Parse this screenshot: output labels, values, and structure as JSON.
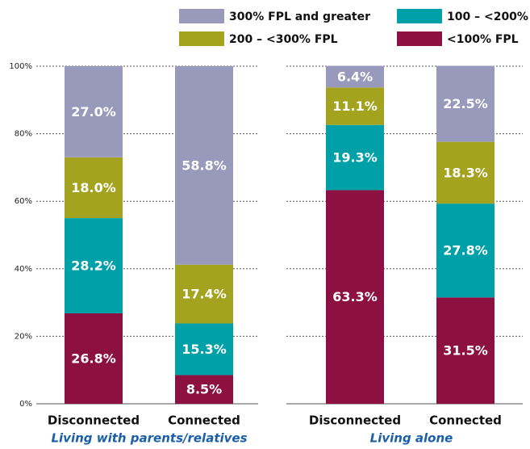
{
  "chart_data": {
    "type": "stacked_bar",
    "categories": [
      "Disconnected",
      "Connected",
      "Disconnected",
      "Connected"
    ],
    "group_labels": [
      "Living with parents/relatives",
      "Living alone"
    ],
    "series": [
      {
        "name": "<100% FPL",
        "color": "#8c1040",
        "values": [
          26.8,
          8.5,
          63.3,
          31.5
        ],
        "value_labels": [
          "26.8%",
          "8.5%",
          "63.3%",
          "31.5%"
        ]
      },
      {
        "name": "100 – <200% FPL",
        "color": "#00a0a8",
        "values": [
          28.2,
          15.3,
          19.3,
          27.8
        ],
        "value_labels": [
          "28.2%",
          "15.3%",
          "19.3%",
          "27.8%"
        ]
      },
      {
        "name": "200 – <300% FPL",
        "color": "#a3a31f",
        "values": [
          18.0,
          17.4,
          11.1,
          18.3
        ],
        "value_labels": [
          "18.0%",
          "17.4%",
          "11.1%",
          "18.3%"
        ]
      },
      {
        "name": "300% FPL and greater",
        "color": "#9999bb",
        "values": [
          27.0,
          58.8,
          6.4,
          22.5
        ],
        "value_labels": [
          "27.0%",
          "58.8%",
          "6.4%",
          "22.5%"
        ]
      }
    ],
    "ylim": [
      0,
      100
    ],
    "yticks": [
      {
        "value": 0,
        "label": "0%"
      },
      {
        "value": 20,
        "label": "20%"
      },
      {
        "value": 40,
        "label": "40%"
      },
      {
        "value": 60,
        "label": "60%"
      },
      {
        "value": 80,
        "label": "80%"
      },
      {
        "value": 100,
        "label": "100%"
      }
    ],
    "grid": true
  }
}
